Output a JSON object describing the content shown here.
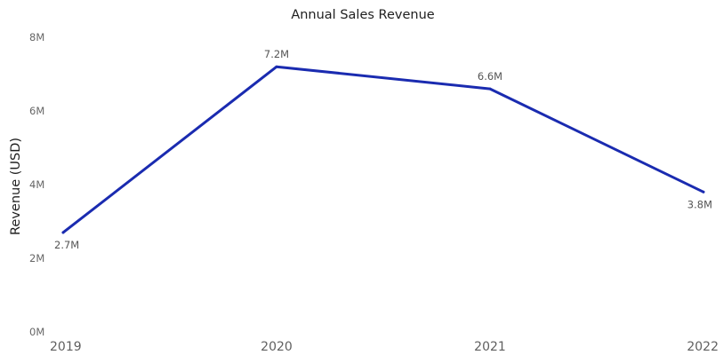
{
  "chart_data": {
    "type": "line",
    "title": "Annual Sales Revenue",
    "xlabel": "",
    "ylabel": "Revenue (USD)",
    "categories": [
      "2019",
      "2020",
      "2021",
      "2022"
    ],
    "series": [
      {
        "values": [
          2.7,
          7.2,
          6.6,
          3.8
        ],
        "data_labels": [
          "2.7M",
          "7.2M",
          "6.6M",
          "3.8M"
        ],
        "color": "#1a2bb0"
      }
    ],
    "y_ticks": [
      {
        "value": 0,
        "label": "0M"
      },
      {
        "value": 2,
        "label": "2M"
      },
      {
        "value": 4,
        "label": "4M"
      },
      {
        "value": 6,
        "label": "6M"
      },
      {
        "value": 8,
        "label": "8M"
      }
    ],
    "ylim": [
      0,
      8
    ],
    "grid": false,
    "legend": "none"
  }
}
